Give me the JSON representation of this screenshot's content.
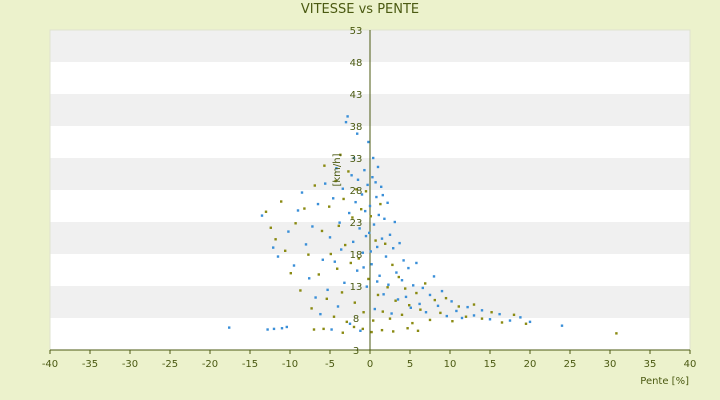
{
  "colors": {
    "background": "#ecf2cc",
    "band_light": "#ffffff",
    "band_dark": "#f0f0f0",
    "axis": "#4b5a12",
    "series_blue": "#3a8fd8",
    "series_olive": "#8a8a12"
  },
  "chart_data": {
    "type": "scatter",
    "title": "VITESSE vs PENTE",
    "xlabel": "Pente [%]",
    "ylabel": "[km/h]",
    "xlim": [
      -40,
      40
    ],
    "ylim": [
      3,
      53
    ],
    "x_ticks": [
      -40,
      -35,
      -30,
      -25,
      -20,
      -15,
      -10,
      -5,
      0,
      5,
      10,
      15,
      20,
      25,
      30,
      35,
      40
    ],
    "y_ticks": [
      3,
      8,
      13,
      18,
      23,
      28,
      33,
      38,
      43,
      48,
      53
    ],
    "grid": "horizontal bands",
    "legend": "none",
    "series": [
      {
        "color": "#3a8fd8",
        "points": [
          [
            -17.6,
            6.5
          ],
          [
            -12.8,
            6.2
          ],
          [
            -12.0,
            6.3
          ],
          [
            -11.0,
            6.4
          ],
          [
            -10.4,
            6.6
          ],
          [
            -13.5,
            24.0
          ],
          [
            -12.1,
            19.0
          ],
          [
            -11.5,
            17.6
          ],
          [
            -10.2,
            21.5
          ],
          [
            -9.5,
            16.2
          ],
          [
            -9.0,
            24.8
          ],
          [
            -8.5,
            27.6
          ],
          [
            -8.0,
            19.5
          ],
          [
            -7.6,
            14.2
          ],
          [
            -7.2,
            22.3
          ],
          [
            -6.8,
            11.2
          ],
          [
            -6.5,
            25.8
          ],
          [
            -6.2,
            8.6
          ],
          [
            -5.9,
            17.1
          ],
          [
            -5.6,
            29.0
          ],
          [
            -5.3,
            12.4
          ],
          [
            -5.0,
            20.6
          ],
          [
            -4.8,
            6.2
          ],
          [
            -4.6,
            26.7
          ],
          [
            -4.4,
            16.8
          ],
          [
            -4.2,
            31.4
          ],
          [
            -4.0,
            9.8
          ],
          [
            -3.8,
            22.9
          ],
          [
            -3.6,
            18.7
          ],
          [
            -3.4,
            28.2
          ],
          [
            -3.2,
            13.5
          ],
          [
            -3.0,
            38.6
          ],
          [
            -2.8,
            39.5
          ],
          [
            -2.6,
            24.4
          ],
          [
            -2.5,
            7.1
          ],
          [
            -2.3,
            30.3
          ],
          [
            -2.1,
            19.9
          ],
          [
            -2.0,
            33.0
          ],
          [
            -1.8,
            26.1
          ],
          [
            -1.6,
            15.4
          ],
          [
            -1.5,
            29.6
          ],
          [
            -1.3,
            22.0
          ],
          [
            -1.2,
            6.0
          ],
          [
            -1.0,
            27.3
          ],
          [
            -0.9,
            18.2
          ],
          [
            -0.7,
            31.1
          ],
          [
            -0.6,
            24.7
          ],
          [
            -0.4,
            12.9
          ],
          [
            -0.3,
            28.8
          ],
          [
            -0.1,
            21.3
          ],
          [
            0.0,
            25.5
          ],
          [
            0.2,
            16.4
          ],
          [
            0.3,
            30.0
          ],
          [
            0.5,
            22.6
          ],
          [
            0.6,
            9.4
          ],
          [
            0.8,
            26.9
          ],
          [
            0.9,
            19.1
          ],
          [
            1.1,
            24.1
          ],
          [
            1.2,
            14.6
          ],
          [
            1.4,
            28.5
          ],
          [
            1.5,
            20.4
          ],
          [
            1.7,
            11.7
          ],
          [
            1.8,
            23.5
          ],
          [
            2.0,
            17.6
          ],
          [
            2.2,
            26.0
          ],
          [
            2.3,
            13.2
          ],
          [
            2.5,
            21.0
          ],
          [
            2.7,
            8.7
          ],
          [
            2.9,
            18.9
          ],
          [
            3.1,
            23.0
          ],
          [
            3.3,
            15.1
          ],
          [
            3.5,
            10.9
          ],
          [
            3.7,
            19.7
          ],
          [
            4.0,
            13.9
          ],
          [
            4.2,
            17.0
          ],
          [
            4.5,
            11.3
          ],
          [
            4.8,
            15.8
          ],
          [
            5.1,
            9.6
          ],
          [
            5.4,
            13.1
          ],
          [
            5.8,
            16.6
          ],
          [
            6.2,
            10.2
          ],
          [
            6.6,
            12.7
          ],
          [
            7.0,
            8.9
          ],
          [
            7.5,
            11.6
          ],
          [
            8.0,
            14.5
          ],
          [
            8.5,
            9.9
          ],
          [
            9.0,
            12.2
          ],
          [
            9.6,
            8.3
          ],
          [
            10.2,
            10.6
          ],
          [
            10.8,
            9.1
          ],
          [
            11.5,
            8.0
          ],
          [
            12.2,
            9.7
          ],
          [
            13.0,
            8.4
          ],
          [
            14.0,
            9.2
          ],
          [
            15.0,
            7.8
          ],
          [
            16.2,
            8.6
          ],
          [
            17.5,
            7.6
          ],
          [
            18.8,
            8.1
          ],
          [
            20.0,
            7.4
          ],
          [
            24.0,
            6.8
          ],
          [
            0.4,
            33.0
          ],
          [
            -0.2,
            35.5
          ],
          [
            1.0,
            31.6
          ],
          [
            -1.6,
            36.8
          ],
          [
            0.7,
            29.2
          ],
          [
            1.6,
            27.2
          ],
          [
            -0.5,
            20.8
          ],
          [
            0.1,
            18.4
          ],
          [
            -0.8,
            15.9
          ],
          [
            0.9,
            13.7
          ]
        ]
      },
      {
        "color": "#8a8a12",
        "points": [
          [
            -13.0,
            24.6
          ],
          [
            -12.4,
            22.1
          ],
          [
            -11.8,
            20.3
          ],
          [
            -11.1,
            26.2
          ],
          [
            -10.6,
            18.5
          ],
          [
            -9.9,
            15.0
          ],
          [
            -9.3,
            22.8
          ],
          [
            -8.7,
            12.3
          ],
          [
            -8.2,
            25.1
          ],
          [
            -7.7,
            17.9
          ],
          [
            -7.3,
            9.5
          ],
          [
            -6.9,
            28.7
          ],
          [
            -6.4,
            14.8
          ],
          [
            -6.0,
            21.6
          ],
          [
            -5.7,
            31.8
          ],
          [
            -5.4,
            11.0
          ],
          [
            -5.1,
            25.4
          ],
          [
            -4.9,
            18.0
          ],
          [
            -4.5,
            8.2
          ],
          [
            -4.3,
            29.4
          ],
          [
            -4.1,
            15.7
          ],
          [
            -3.9,
            22.4
          ],
          [
            -3.7,
            33.5
          ],
          [
            -3.5,
            12.0
          ],
          [
            -3.3,
            26.6
          ],
          [
            -3.1,
            19.4
          ],
          [
            -2.9,
            7.4
          ],
          [
            -2.7,
            30.9
          ],
          [
            -2.4,
            16.6
          ],
          [
            -2.2,
            23.7
          ],
          [
            -1.9,
            10.4
          ],
          [
            -1.7,
            28.1
          ],
          [
            -1.4,
            17.3
          ],
          [
            -1.1,
            25.0
          ],
          [
            -0.8,
            8.9
          ],
          [
            -0.5,
            27.8
          ],
          [
            -0.2,
            14.1
          ],
          [
            0.1,
            23.9
          ],
          [
            0.4,
            7.6
          ],
          [
            0.7,
            20.1
          ],
          [
            1.0,
            11.6
          ],
          [
            1.3,
            25.8
          ],
          [
            1.6,
            9.0
          ],
          [
            1.9,
            19.6
          ],
          [
            2.2,
            12.8
          ],
          [
            2.5,
            7.9
          ],
          [
            2.8,
            16.3
          ],
          [
            3.2,
            10.7
          ],
          [
            3.6,
            14.4
          ],
          [
            4.0,
            8.5
          ],
          [
            4.4,
            12.6
          ],
          [
            4.9,
            10.0
          ],
          [
            5.3,
            7.2
          ],
          [
            5.8,
            11.9
          ],
          [
            6.3,
            9.3
          ],
          [
            6.9,
            13.4
          ],
          [
            7.5,
            7.7
          ],
          [
            8.1,
            10.8
          ],
          [
            8.8,
            8.8
          ],
          [
            9.5,
            11.1
          ],
          [
            10.3,
            7.5
          ],
          [
            11.1,
            9.8
          ],
          [
            12.0,
            8.2
          ],
          [
            13.0,
            10.1
          ],
          [
            14.0,
            7.9
          ],
          [
            15.2,
            8.9
          ],
          [
            16.5,
            7.3
          ],
          [
            18.0,
            8.5
          ],
          [
            19.5,
            7.1
          ],
          [
            30.8,
            5.6
          ],
          [
            -0.9,
            6.3
          ],
          [
            0.2,
            5.8
          ],
          [
            1.5,
            6.1
          ],
          [
            2.9,
            5.9
          ],
          [
            -2.0,
            6.6
          ],
          [
            -3.4,
            5.7
          ],
          [
            4.7,
            6.4
          ],
          [
            6.0,
            6.0
          ],
          [
            -5.8,
            6.3
          ],
          [
            -7.0,
            6.2
          ]
        ]
      }
    ]
  }
}
